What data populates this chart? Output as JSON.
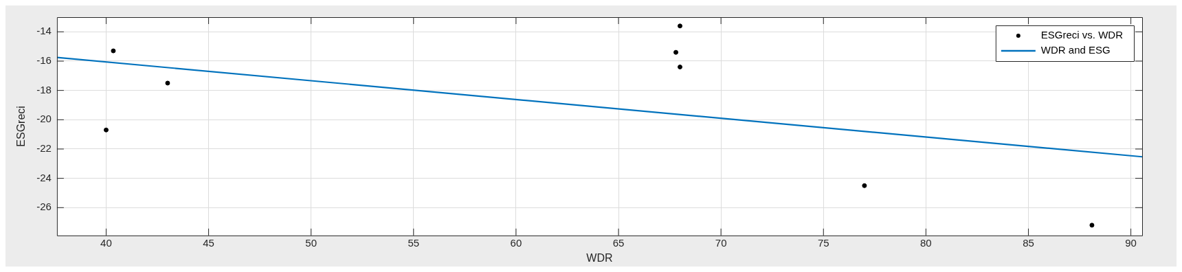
{
  "chart_data": {
    "type": "scatter",
    "xlabel": "WDR",
    "ylabel": "ESGreci",
    "xlim": [
      37.6,
      90.55
    ],
    "ylim": [
      -27.9,
      -13
    ],
    "xticks": [
      40,
      45,
      50,
      55,
      60,
      65,
      70,
      75,
      80,
      85,
      90
    ],
    "yticks": [
      -26,
      -24,
      -22,
      -20,
      -18,
      -16,
      -14
    ],
    "grid": true,
    "legend": "top right",
    "series": [
      {
        "name": "ESGreci vs. WDR",
        "type": "scatter",
        "color": "#000000",
        "marker": "circle",
        "x": [
          40,
          40.35,
          43,
          67.8,
          68,
          68,
          77,
          88.1
        ],
        "values": [
          -20.7,
          -15.3,
          -17.5,
          -15.4,
          -13.6,
          -16.4,
          -24.5,
          -27.2
        ]
      },
      {
        "name": "WDR and ESG",
        "type": "line",
        "color": "#0072bd",
        "marker": "none",
        "line_style": "solid",
        "x": [
          37.6,
          90.55
        ],
        "values": [
          -15.75,
          -22.53
        ]
      }
    ]
  }
}
